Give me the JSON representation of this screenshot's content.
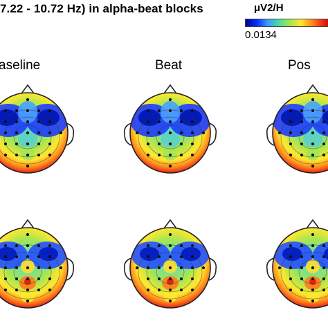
{
  "figure": {
    "title": "7.22 - 10.72 Hz) in alpha-beat blocks",
    "colorbar": {
      "unit_label": "μV2/H",
      "min_label": "0.0134",
      "colormap": [
        "#00008f",
        "#0030ff",
        "#3d9bff",
        "#48dca0",
        "#a6e652",
        "#ffe82e",
        "#ff8a1c",
        "#e8261a",
        "#9e0000"
      ]
    },
    "columns": [
      "aseline",
      "Beat",
      "Pos"
    ]
  }
}
